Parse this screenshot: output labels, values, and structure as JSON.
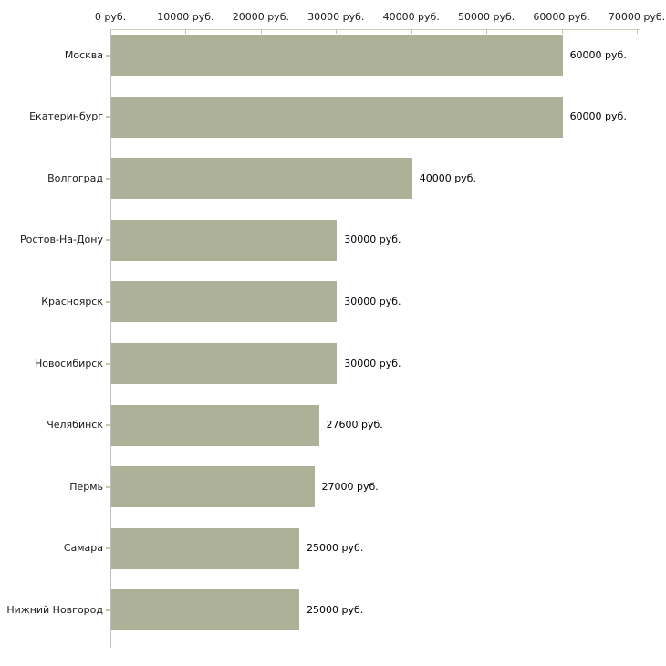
{
  "chart_data": {
    "type": "bar",
    "orientation": "horizontal",
    "title": "",
    "xlabel": "",
    "ylabel": "",
    "xlim": [
      0,
      70000
    ],
    "grid": false,
    "legend": false,
    "x_tick_values": [
      0,
      10000,
      20000,
      30000,
      40000,
      50000,
      60000,
      70000
    ],
    "x_tick_labels": [
      "0 руб.",
      "10000 руб.",
      "20000 руб.",
      "30000 руб.",
      "40000 руб.",
      "50000 руб.",
      "60000 руб.",
      "70000 руб."
    ],
    "categories": [
      "Москва",
      "Екатеринбург",
      "Волгоград",
      "Ростов-На-Дону",
      "Красноярск",
      "Новосибирск",
      "Челябинск",
      "Пермь",
      "Самара",
      "Нижний Новгород"
    ],
    "values": [
      60000,
      60000,
      40000,
      30000,
      30000,
      30000,
      27600,
      27000,
      25000,
      25000
    ],
    "value_labels": [
      "60000 руб.",
      "60000 руб.",
      "40000 руб.",
      "30000 руб.",
      "30000 руб.",
      "30000 руб.",
      "27600 руб.",
      "27000 руб.",
      "25000 руб.",
      "25000 руб."
    ],
    "colors": {
      "bar": "#acb197",
      "x_axis_line": "#cfcfbd",
      "x_tick_mark": "#c6c6a8",
      "y_axis_line": "#c0c0c0",
      "category_tick": "#c6c6a8",
      "text": "#1a1a1a",
      "background": "#ffffff"
    }
  }
}
